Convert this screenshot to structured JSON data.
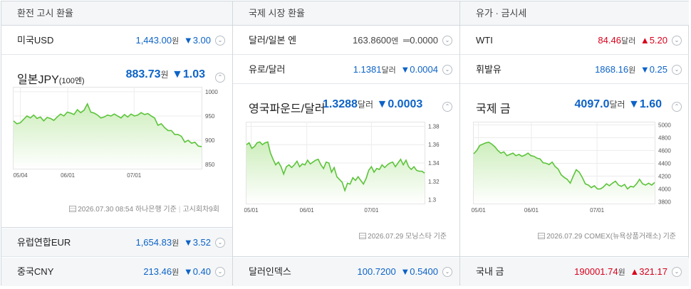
{
  "columns": {
    "exchange": {
      "title": "환전 고시 환율"
    },
    "intl": {
      "title": "국제 시장 환율"
    },
    "commodity": {
      "title": "유가 · 금시세"
    }
  },
  "exchange_rows": [
    {
      "name": "미국USD",
      "value": "1,443.00",
      "unit": "원",
      "change": "▼3.00",
      "direction": "down"
    },
    {
      "name": "유럽연합EUR",
      "value": "1,654.83",
      "unit": "원",
      "change": "▼3.52",
      "direction": "down"
    },
    {
      "name": "중국CNY",
      "value": "213.46",
      "unit": "원",
      "change": "▼0.40",
      "direction": "down"
    }
  ],
  "intl_rows": [
    {
      "name": "달러/일본 엔",
      "value": "163.8600",
      "unit": "엔",
      "change": "═0.0000",
      "direction": "flat"
    },
    {
      "name": "유로/달러",
      "value": "1.1381",
      "unit": "달러",
      "change": "▼0.0004",
      "direction": "down"
    },
    {
      "name": "달러인덱스",
      "value": "100.7200",
      "unit": "",
      "change": "▼0.5400",
      "direction": "down"
    }
  ],
  "commodity_rows": [
    {
      "name": "WTI",
      "value": "84.46",
      "unit": "달러",
      "change": "▲5.20",
      "direction": "up"
    },
    {
      "name": "휘발유",
      "value": "1868.16",
      "unit": "원",
      "change": "▼0.25",
      "direction": "down"
    },
    {
      "name": "국내 금",
      "value": "190001.74",
      "unit": "원",
      "change": "▲321.17",
      "direction": "up"
    }
  ],
  "jpy_panel": {
    "title": "일본JPY",
    "title_suffix": "(100엔)",
    "value": "883.73",
    "unit": "원",
    "change": "▼1.03",
    "source": {
      "date": "2026.07.30 08:54",
      "provider": "하나은행 기준",
      "note": "고시회차9회"
    }
  },
  "gbp_panel": {
    "title": "영국파운드/달러",
    "value": "1.3288",
    "unit": "달러",
    "change": "▼0.0003",
    "source": {
      "date": "2026.07.29",
      "provider": "모닝스타 기준"
    }
  },
  "gold_panel": {
    "title": "국제 금",
    "value": "4097.0",
    "unit": "달러",
    "change": "▼1.60",
    "source": {
      "date": "2026.07.29",
      "provider": "COMEX(뉴욕상품거래소) 기준"
    }
  },
  "colors": {
    "accent_blue": "#0d63c7",
    "up_red": "#d9001b",
    "line_green": "#5cc43a",
    "area_green": "#e9f7e1"
  },
  "icons": {
    "toggle_down": "chevron-down-icon",
    "toggle_up": "chevron-up-icon",
    "source": "document-icon"
  },
  "chart_data": [
    {
      "type": "area",
      "name": "jpy",
      "x_ticks": [
        "05/04",
        "06/01",
        "07/01"
      ],
      "y_ticks": [
        850,
        900,
        950,
        1000
      ],
      "ylim": [
        840,
        1010
      ],
      "grid": true,
      "values": [
        940,
        934,
        936,
        943,
        950,
        946,
        952,
        945,
        948,
        940,
        947,
        945,
        941,
        948,
        954,
        950,
        958,
        956,
        953,
        963,
        957,
        962,
        975,
        958,
        956,
        952,
        946,
        948,
        952,
        950,
        954,
        950,
        946,
        953,
        948,
        954,
        950,
        952,
        957,
        953,
        955,
        950,
        946,
        931,
        934,
        926,
        920,
        920,
        912,
        912,
        908,
        896,
        900,
        894,
        896,
        888,
        887
      ]
    },
    {
      "type": "area",
      "name": "gbp",
      "x_ticks": [
        "05/01",
        "06/01",
        "07/01"
      ],
      "y_ticks": [
        1.3,
        1.32,
        1.34,
        1.36,
        1.38
      ],
      "ylim": [
        1.295,
        1.385
      ],
      "grid": true,
      "values": [
        1.36,
        1.362,
        1.356,
        1.358,
        1.362,
        1.363,
        1.36,
        1.362,
        1.363,
        1.351,
        1.344,
        1.338,
        1.341,
        1.336,
        1.328,
        1.336,
        1.338,
        1.335,
        1.338,
        1.342,
        1.336,
        1.339,
        1.338,
        1.343,
        1.339,
        1.341,
        1.343,
        1.344,
        1.338,
        1.334,
        1.341,
        1.34,
        1.33,
        1.335,
        1.325,
        1.322,
        1.319,
        1.31,
        1.318,
        1.317,
        1.324,
        1.321,
        1.325,
        1.321,
        1.317,
        1.323,
        1.332,
        1.336,
        1.33,
        1.334,
        1.333,
        1.338,
        1.335,
        1.338,
        1.34,
        1.341,
        1.336,
        1.34,
        1.344,
        1.338,
        1.343,
        1.336,
        1.333,
        1.336,
        1.332,
        1.331,
        1.331,
        1.329
      ]
    },
    {
      "type": "area",
      "name": "gold",
      "x_ticks": [
        "05/01",
        "06/01",
        "07/01"
      ],
      "y_ticks": [
        3800,
        4000,
        4200,
        4400,
        4600,
        4800,
        5000
      ],
      "ylim": [
        3760,
        5050
      ],
      "grid": true,
      "values": [
        4550,
        4600,
        4680,
        4700,
        4720,
        4730,
        4700,
        4660,
        4600,
        4560,
        4580,
        4520,
        4540,
        4560,
        4520,
        4540,
        4510,
        4530,
        4560,
        4520,
        4510,
        4480,
        4470,
        4410,
        4400,
        4380,
        4420,
        4350,
        4310,
        4220,
        4180,
        4150,
        4090,
        4200,
        4300,
        4260,
        4180,
        4080,
        4060,
        4020,
        4050,
        4000,
        4000,
        4030,
        4080,
        4050,
        4090,
        4120,
        4060,
        4040,
        4070,
        4000,
        4040,
        4030,
        4080,
        4150,
        4080,
        4060,
        4090,
        4060,
        4100
      ]
    }
  ]
}
